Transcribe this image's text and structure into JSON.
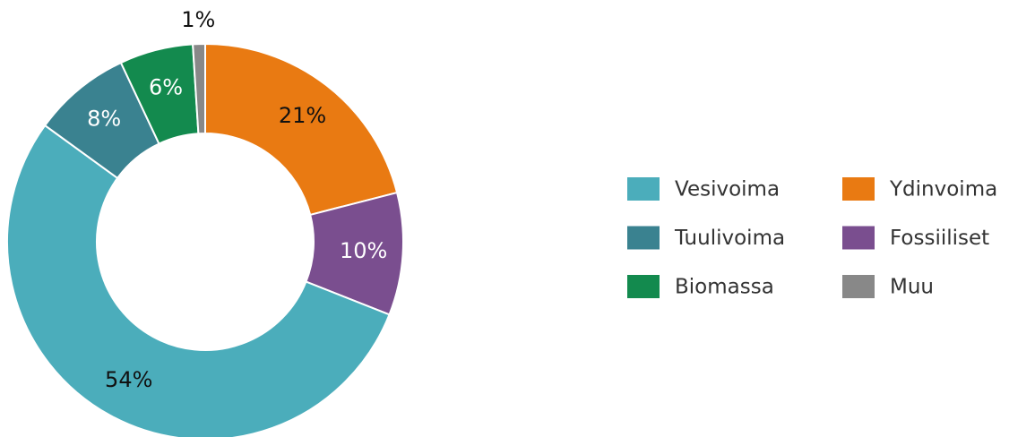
{
  "chart_data": {
    "type": "donut",
    "categories": [
      "Ydinvoima",
      "Fossiiliset",
      "Vesivoima",
      "Tuulivoima",
      "Biomassa",
      "Muu"
    ],
    "values": [
      21,
      10,
      54,
      8,
      6,
      1
    ],
    "value_labels": [
      "21%",
      "10%",
      "54%",
      "8%",
      "6%",
      "1%"
    ],
    "colors": [
      "#e97a12",
      "#7a4e8f",
      "#4badbb",
      "#3a8290",
      "#138a4e",
      "#888888"
    ],
    "value_label_colors": [
      "#111111",
      "#ffffff",
      "#111111",
      "#ffffff",
      "#ffffff",
      "#111111"
    ],
    "legend": "right"
  }
}
